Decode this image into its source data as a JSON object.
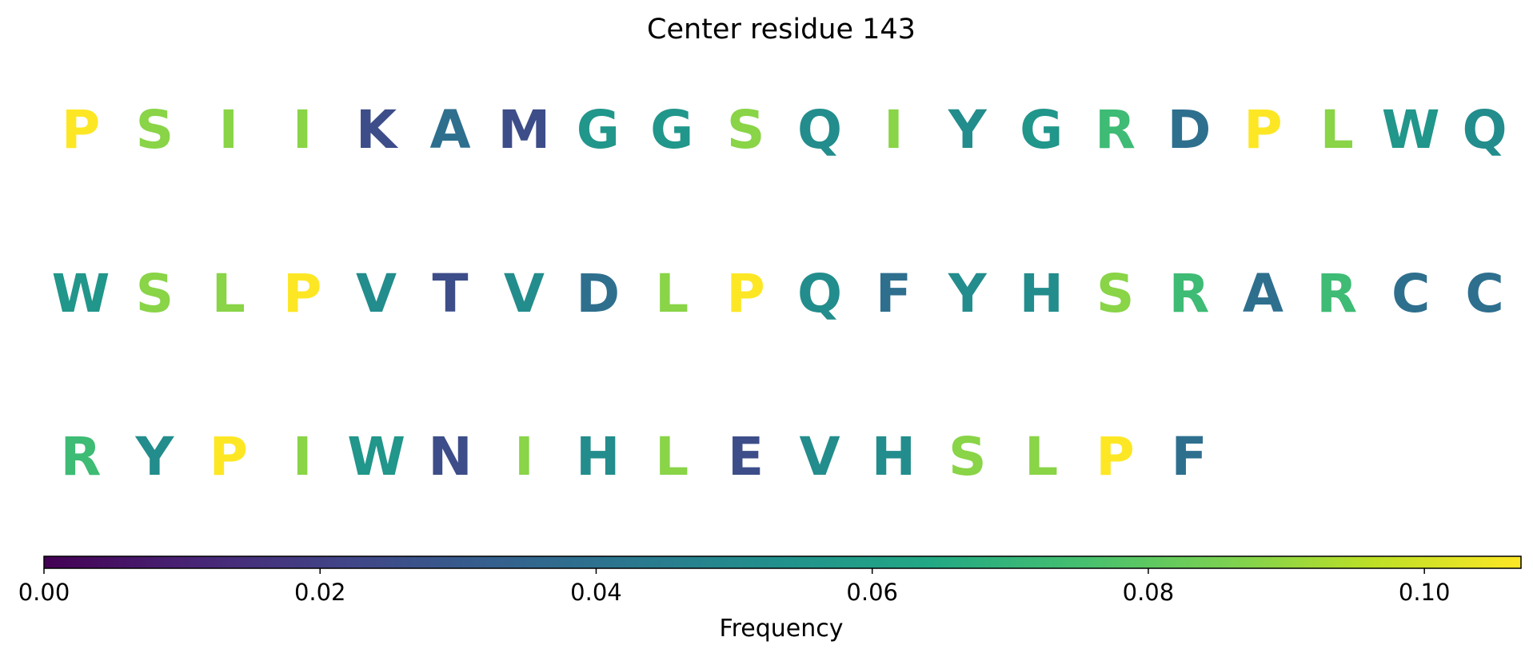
{
  "chart_data": {
    "type": "heatmap",
    "title": "Center residue 143",
    "colormap": "viridis",
    "rows": [
      [
        {
          "letter": "P",
          "value": 0.107
        },
        {
          "letter": "S",
          "value": 0.088
        },
        {
          "letter": "I",
          "value": 0.088
        },
        {
          "letter": "I",
          "value": 0.088
        },
        {
          "letter": "K",
          "value": 0.025
        },
        {
          "letter": "A",
          "value": 0.039
        },
        {
          "letter": "M",
          "value": 0.025
        },
        {
          "letter": "G",
          "value": 0.056
        },
        {
          "letter": "G",
          "value": 0.056
        },
        {
          "letter": "S",
          "value": 0.088
        },
        {
          "letter": "Q",
          "value": 0.052
        },
        {
          "letter": "I",
          "value": 0.088
        },
        {
          "letter": "Y",
          "value": 0.052
        },
        {
          "letter": "G",
          "value": 0.056
        },
        {
          "letter": "R",
          "value": 0.073
        },
        {
          "letter": "D",
          "value": 0.039
        },
        {
          "letter": "P",
          "value": 0.107
        },
        {
          "letter": "L",
          "value": 0.088
        },
        {
          "letter": "W",
          "value": 0.056
        },
        {
          "letter": "Q",
          "value": 0.052
        }
      ],
      [
        {
          "letter": "W",
          "value": 0.056
        },
        {
          "letter": "S",
          "value": 0.088
        },
        {
          "letter": "L",
          "value": 0.088
        },
        {
          "letter": "P",
          "value": 0.107
        },
        {
          "letter": "V",
          "value": 0.052
        },
        {
          "letter": "T",
          "value": 0.025
        },
        {
          "letter": "V",
          "value": 0.052
        },
        {
          "letter": "D",
          "value": 0.039
        },
        {
          "letter": "L",
          "value": 0.088
        },
        {
          "letter": "P",
          "value": 0.107
        },
        {
          "letter": "Q",
          "value": 0.052
        },
        {
          "letter": "F",
          "value": 0.039
        },
        {
          "letter": "Y",
          "value": 0.052
        },
        {
          "letter": "H",
          "value": 0.052
        },
        {
          "letter": "S",
          "value": 0.088
        },
        {
          "letter": "R",
          "value": 0.073
        },
        {
          "letter": "A",
          "value": 0.039
        },
        {
          "letter": "R",
          "value": 0.073
        },
        {
          "letter": "C",
          "value": 0.039
        },
        {
          "letter": "C",
          "value": 0.039
        }
      ],
      [
        {
          "letter": "R",
          "value": 0.073
        },
        {
          "letter": "Y",
          "value": 0.052
        },
        {
          "letter": "P",
          "value": 0.107
        },
        {
          "letter": "I",
          "value": 0.088
        },
        {
          "letter": "W",
          "value": 0.056
        },
        {
          "letter": "N",
          "value": 0.025
        },
        {
          "letter": "I",
          "value": 0.088
        },
        {
          "letter": "H",
          "value": 0.052
        },
        {
          "letter": "L",
          "value": 0.088
        },
        {
          "letter": "E",
          "value": 0.025
        },
        {
          "letter": "V",
          "value": 0.052
        },
        {
          "letter": "H",
          "value": 0.052
        },
        {
          "letter": "S",
          "value": 0.088
        },
        {
          "letter": "L",
          "value": 0.088
        },
        {
          "letter": "P",
          "value": 0.107
        },
        {
          "letter": "F",
          "value": 0.039
        }
      ]
    ],
    "colorbar": {
      "label": "Frequency",
      "range": [
        0.0,
        0.107
      ],
      "ticks": [
        0.0,
        0.02,
        0.04,
        0.06,
        0.08,
        0.1
      ],
      "tick_labels": [
        "0.00",
        "0.02",
        "0.04",
        "0.06",
        "0.08",
        "0.10"
      ]
    }
  }
}
